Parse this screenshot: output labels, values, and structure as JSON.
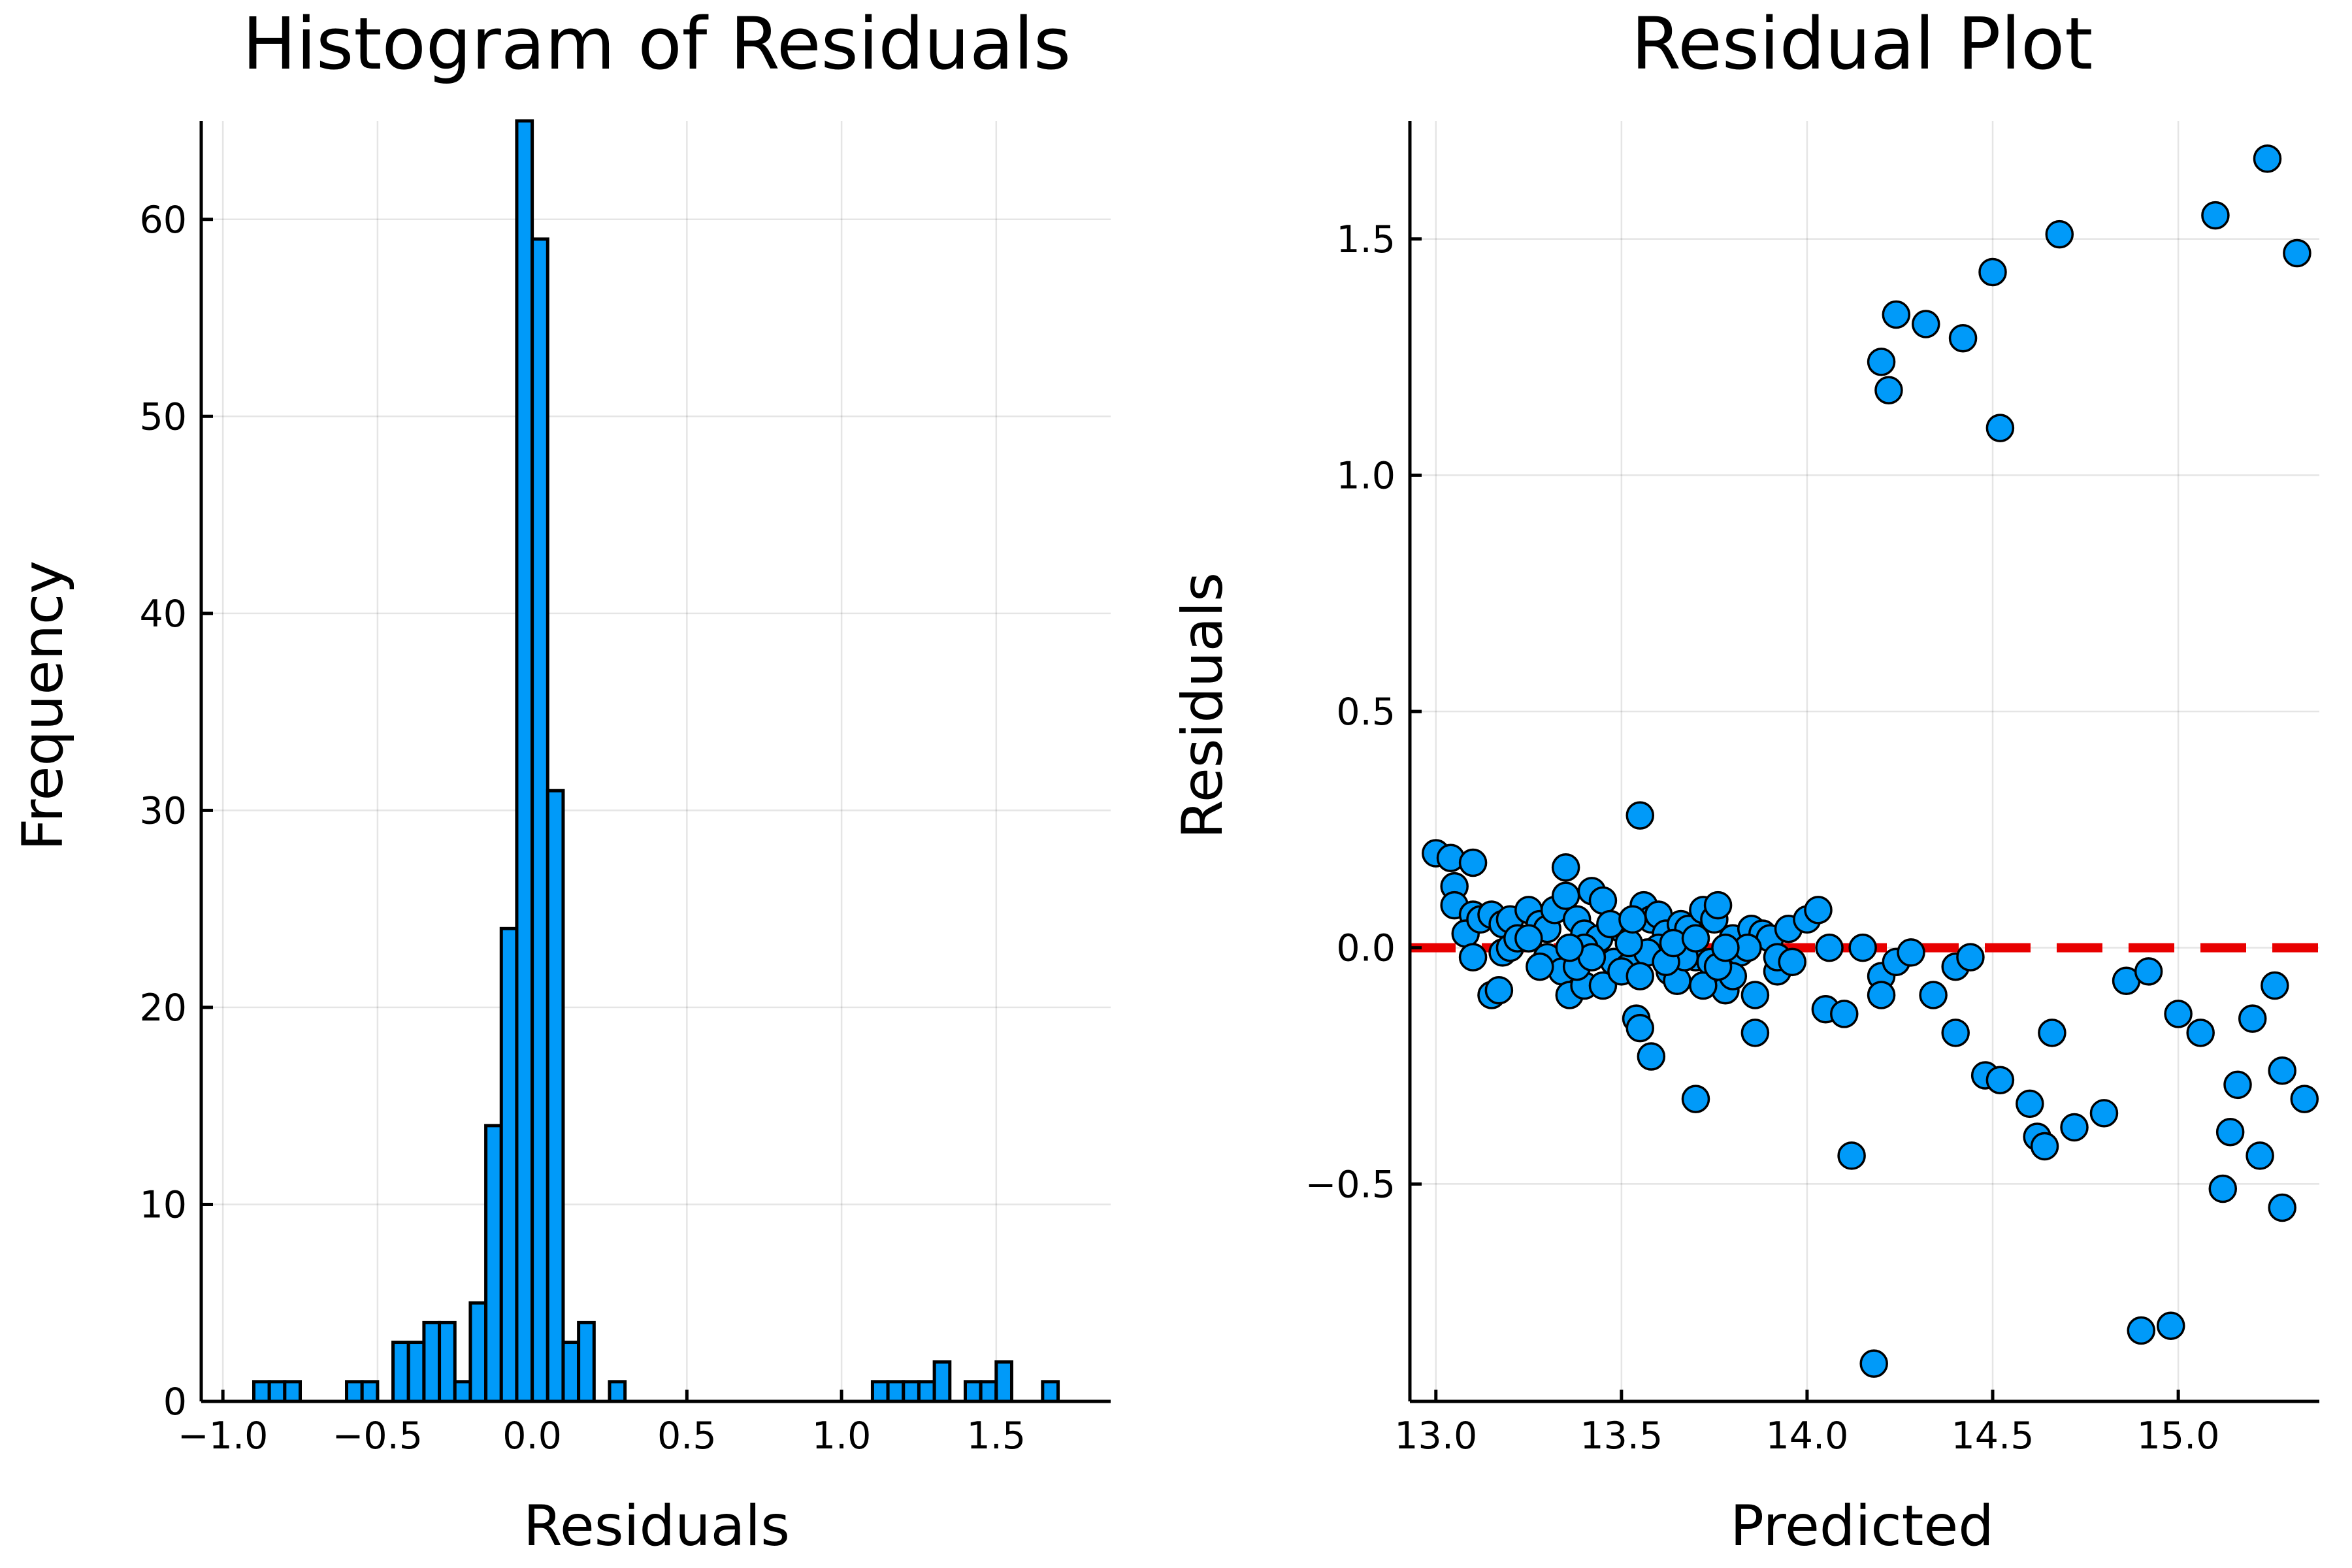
{
  "chart_data": [
    {
      "type": "bar",
      "title": "Histogram of Residuals",
      "xlabel": "Residuals",
      "ylabel": "Frequency",
      "xlim": [
        -1.07,
        1.87
      ],
      "ylim": [
        0,
        65
      ],
      "bin_width": 0.05,
      "bins": [
        {
          "x0": -0.9,
          "value": 1
        },
        {
          "x0": -0.85,
          "value": 1
        },
        {
          "x0": -0.8,
          "value": 1
        },
        {
          "x0": -0.6,
          "value": 1
        },
        {
          "x0": -0.55,
          "value": 1
        },
        {
          "x0": -0.45,
          "value": 3
        },
        {
          "x0": -0.4,
          "value": 3
        },
        {
          "x0": -0.35,
          "value": 4
        },
        {
          "x0": -0.3,
          "value": 4
        },
        {
          "x0": -0.25,
          "value": 1
        },
        {
          "x0": -0.2,
          "value": 5
        },
        {
          "x0": -0.15,
          "value": 14
        },
        {
          "x0": -0.1,
          "value": 24
        },
        {
          "x0": -0.05,
          "value": 65
        },
        {
          "x0": 0.0,
          "value": 59
        },
        {
          "x0": 0.05,
          "value": 31
        },
        {
          "x0": 0.1,
          "value": 3
        },
        {
          "x0": 0.15,
          "value": 4
        },
        {
          "x0": 0.25,
          "value": 1
        },
        {
          "x0": 1.1,
          "value": 1
        },
        {
          "x0": 1.15,
          "value": 1
        },
        {
          "x0": 1.2,
          "value": 1
        },
        {
          "x0": 1.25,
          "value": 1
        },
        {
          "x0": 1.3,
          "value": 2
        },
        {
          "x0": 1.4,
          "value": 1
        },
        {
          "x0": 1.45,
          "value": 1
        },
        {
          "x0": 1.5,
          "value": 2
        },
        {
          "x0": 1.65,
          "value": 1
        }
      ],
      "x_ticks": [
        {
          "value": -1.0,
          "label": "−1.0"
        },
        {
          "value": -0.5,
          "label": "−0.5"
        },
        {
          "value": 0.0,
          "label": "0.0"
        },
        {
          "value": 0.5,
          "label": "0.5"
        },
        {
          "value": 1.0,
          "label": "1.0"
        },
        {
          "value": 1.5,
          "label": "1.5"
        }
      ],
      "y_ticks": [
        {
          "value": 0,
          "label": "0"
        },
        {
          "value": 10,
          "label": "10"
        },
        {
          "value": 20,
          "label": "20"
        },
        {
          "value": 30,
          "label": "30"
        },
        {
          "value": 40,
          "label": "40"
        },
        {
          "value": 50,
          "label": "50"
        },
        {
          "value": 60,
          "label": "60"
        }
      ],
      "grid": true,
      "color": "#009af9"
    },
    {
      "type": "scatter",
      "title": "Residual Plot",
      "xlabel": "Predicted",
      "ylabel": "Residuals",
      "xlim": [
        12.93,
        15.38
      ],
      "ylim": [
        -0.96,
        1.75
      ],
      "x_ticks": [
        {
          "value": 13.0,
          "label": "13.0"
        },
        {
          "value": 13.5,
          "label": "13.5"
        },
        {
          "value": 14.0,
          "label": "14.0"
        },
        {
          "value": 14.5,
          "label": "14.5"
        },
        {
          "value": 15.0,
          "label": "15.0"
        }
      ],
      "y_ticks": [
        {
          "value": -0.5,
          "label": "−0.5"
        },
        {
          "value": 0.0,
          "label": "0.0"
        },
        {
          "value": 0.5,
          "label": "0.5"
        },
        {
          "value": 1.0,
          "label": "1.0"
        },
        {
          "value": 1.5,
          "label": "1.5"
        }
      ],
      "reference_line": {
        "y": 0,
        "color": "#e80000",
        "style": "dashed"
      },
      "grid": true,
      "color": "#009af9",
      "points": [
        [
          13.0,
          0.2
        ],
        [
          13.04,
          0.19
        ],
        [
          13.1,
          0.18
        ],
        [
          13.05,
          0.13
        ],
        [
          13.05,
          0.09
        ],
        [
          13.1,
          0.07
        ],
        [
          13.08,
          0.03
        ],
        [
          13.12,
          0.06
        ],
        [
          13.15,
          0.07
        ],
        [
          13.18,
          0.05
        ],
        [
          13.2,
          0.06
        ],
        [
          13.1,
          -0.02
        ],
        [
          13.18,
          -0.01
        ],
        [
          13.2,
          0.0
        ],
        [
          13.15,
          -0.1
        ],
        [
          13.17,
          -0.09
        ],
        [
          13.25,
          0.08
        ],
        [
          13.28,
          0.05
        ],
        [
          13.22,
          0.02
        ],
        [
          13.3,
          0.04
        ],
        [
          13.32,
          0.08
        ],
        [
          13.35,
          0.17
        ],
        [
          13.35,
          0.11
        ],
        [
          13.38,
          0.06
        ],
        [
          13.4,
          0.03
        ],
        [
          13.3,
          -0.02
        ],
        [
          13.34,
          -0.05
        ],
        [
          13.36,
          -0.1
        ],
        [
          13.4,
          -0.08
        ],
        [
          13.42,
          0.12
        ],
        [
          13.45,
          0.1
        ],
        [
          13.44,
          0.02
        ],
        [
          13.48,
          -0.03
        ],
        [
          13.5,
          0.04
        ],
        [
          13.52,
          -0.04
        ],
        [
          13.54,
          -0.15
        ],
        [
          13.55,
          -0.17
        ],
        [
          13.55,
          0.28
        ],
        [
          13.56,
          0.09
        ],
        [
          13.58,
          0.06
        ],
        [
          13.6,
          0.07
        ],
        [
          13.62,
          0.03
        ],
        [
          13.58,
          -0.23
        ],
        [
          13.63,
          -0.05
        ],
        [
          13.66,
          0.05
        ],
        [
          13.68,
          0.04
        ],
        [
          13.7,
          -0.02
        ],
        [
          13.7,
          -0.32
        ],
        [
          13.72,
          0.08
        ],
        [
          13.75,
          0.06
        ],
        [
          13.76,
          0.09
        ],
        [
          13.78,
          -0.09
        ],
        [
          13.8,
          0.02
        ],
        [
          13.82,
          -0.01
        ],
        [
          13.85,
          0.04
        ],
        [
          13.86,
          -0.1
        ],
        [
          13.86,
          -0.18
        ],
        [
          13.88,
          0.03
        ],
        [
          13.9,
          0.02
        ],
        [
          13.92,
          -0.05
        ],
        [
          13.95,
          0.04
        ],
        [
          14.0,
          0.06
        ],
        [
          14.03,
          0.08
        ],
        [
          14.05,
          -0.13
        ],
        [
          14.06,
          0.0
        ],
        [
          14.1,
          -0.14
        ],
        [
          14.12,
          -0.44
        ],
        [
          14.15,
          0.0
        ],
        [
          14.18,
          -0.88
        ],
        [
          14.2,
          -0.06
        ],
        [
          14.2,
          -0.1
        ],
        [
          14.2,
          1.24
        ],
        [
          14.22,
          1.18
        ],
        [
          14.24,
          1.34
        ],
        [
          14.24,
          -0.03
        ],
        [
          14.28,
          -0.01
        ],
        [
          14.32,
          1.32
        ],
        [
          14.34,
          -0.1
        ],
        [
          14.4,
          -0.04
        ],
        [
          14.4,
          -0.18
        ],
        [
          14.42,
          1.29
        ],
        [
          14.44,
          -0.02
        ],
        [
          14.48,
          -0.27
        ],
        [
          14.5,
          1.43
        ],
        [
          14.52,
          1.1
        ],
        [
          14.52,
          -0.28
        ],
        [
          14.6,
          -0.33
        ],
        [
          14.62,
          -0.4
        ],
        [
          14.64,
          -0.42
        ],
        [
          14.66,
          -0.18
        ],
        [
          14.68,
          1.51
        ],
        [
          14.72,
          -0.38
        ],
        [
          14.8,
          -0.35
        ],
        [
          14.86,
          -0.07
        ],
        [
          14.9,
          -0.81
        ],
        [
          14.92,
          -0.05
        ],
        [
          14.98,
          -0.8
        ],
        [
          15.0,
          -0.14
        ],
        [
          15.06,
          -0.18
        ],
        [
          15.1,
          1.55
        ],
        [
          15.12,
          -0.51
        ],
        [
          15.14,
          -0.39
        ],
        [
          15.16,
          -0.29
        ],
        [
          15.2,
          -0.15
        ],
        [
          15.22,
          -0.44
        ],
        [
          15.24,
          1.67
        ],
        [
          15.26,
          -0.08
        ],
        [
          15.28,
          -0.55
        ],
        [
          15.28,
          -0.26
        ],
        [
          15.32,
          1.47
        ],
        [
          15.34,
          -0.32
        ],
        [
          13.45,
          -0.08
        ],
        [
          13.5,
          -0.05
        ],
        [
          13.6,
          0.0
        ],
        [
          13.65,
          -0.07
        ],
        [
          13.74,
          -0.03
        ],
        [
          13.8,
          -0.06
        ],
        [
          13.92,
          -0.02
        ],
        [
          13.28,
          -0.04
        ],
        [
          13.4,
          0.0
        ],
        [
          13.47,
          0.05
        ],
        [
          13.57,
          -0.01
        ],
        [
          13.67,
          -0.02
        ],
        [
          13.72,
          -0.08
        ],
        [
          13.84,
          0.0
        ],
        [
          13.38,
          -0.04
        ],
        [
          13.52,
          0.01
        ],
        [
          13.62,
          -0.03
        ],
        [
          13.76,
          -0.04
        ],
        [
          13.96,
          -0.03
        ],
        [
          13.25,
          0.02
        ],
        [
          13.42,
          -0.02
        ],
        [
          13.53,
          0.06
        ],
        [
          13.64,
          0.01
        ],
        [
          13.7,
          0.02
        ],
        [
          13.78,
          0.0
        ],
        [
          13.36,
          0.0
        ],
        [
          13.55,
          -0.06
        ]
      ]
    }
  ]
}
